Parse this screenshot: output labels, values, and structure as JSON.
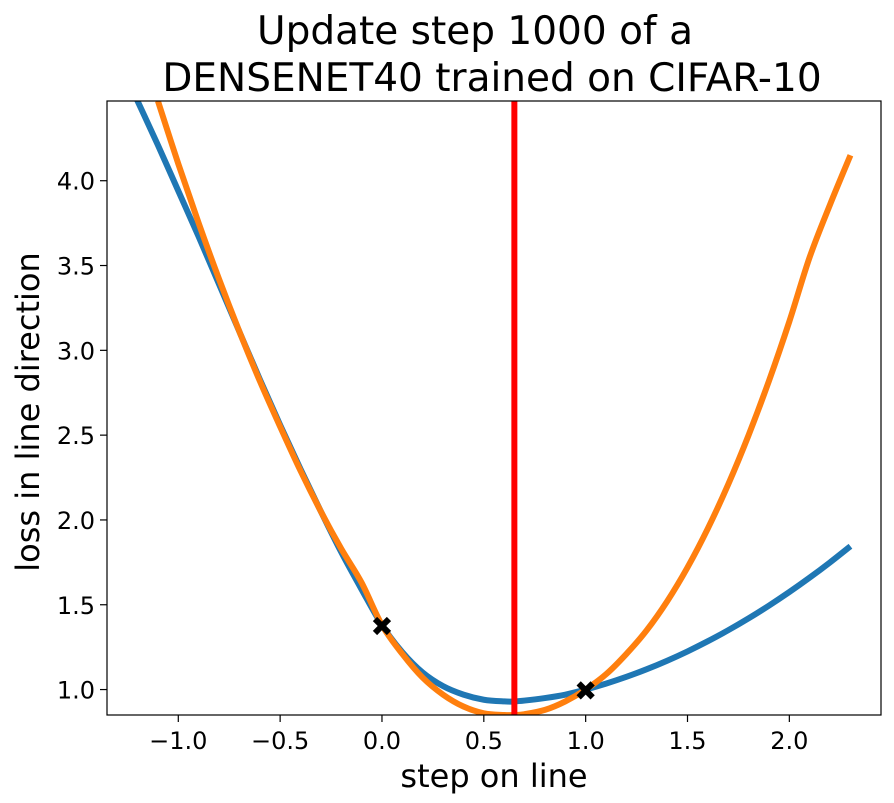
{
  "chart_data": {
    "type": "line",
    "title_lines": [
      "Update step 1000 of a",
      "DENSENET40 trained on CIFAR-10"
    ],
    "xlabel": "step on line",
    "ylabel": "loss in line direction",
    "xlim": [
      -1.35,
      2.45
    ],
    "ylim": [
      0.85,
      4.47
    ],
    "xticks": [
      -1.0,
      -0.5,
      0.0,
      0.5,
      1.0,
      1.5,
      2.0
    ],
    "xtick_labels": [
      "−1.0",
      "−0.5",
      "0.0",
      "0.5",
      "1.0",
      "1.5",
      "2.0"
    ],
    "yticks": [
      1.0,
      1.5,
      2.0,
      2.5,
      3.0,
      3.5,
      4.0
    ],
    "ytick_labels": [
      "1.0",
      "1.5",
      "2.0",
      "2.5",
      "3.0",
      "3.5",
      "4.0"
    ],
    "grid": false,
    "series": [
      {
        "color": "#1f77b4",
        "x": [
          -1.3,
          -1.2,
          -1.1,
          -1.0,
          -0.9,
          -0.8,
          -0.7,
          -0.6,
          -0.5,
          -0.4,
          -0.3,
          -0.2,
          -0.1,
          0.0,
          0.1,
          0.2,
          0.3,
          0.4,
          0.5,
          0.6,
          0.65,
          0.7,
          0.8,
          0.9,
          1.0,
          1.1,
          1.2,
          1.3,
          1.4,
          1.5,
          1.6,
          1.7,
          1.8,
          1.9,
          2.0,
          2.1,
          2.2,
          2.3
        ],
        "y": [
          4.73,
          4.47,
          4.21,
          3.94,
          3.67,
          3.39,
          3.11,
          2.83,
          2.56,
          2.3,
          2.05,
          1.81,
          1.59,
          1.38,
          1.22,
          1.1,
          1.02,
          0.97,
          0.94,
          0.93,
          0.93,
          0.935,
          0.95,
          0.97,
          1.0,
          1.035,
          1.075,
          1.12,
          1.17,
          1.225,
          1.285,
          1.35,
          1.42,
          1.495,
          1.575,
          1.66,
          1.75,
          1.845
        ]
      },
      {
        "color": "#ff7f0e",
        "x": [
          -1.1,
          -1.0,
          -0.9,
          -0.8,
          -0.7,
          -0.6,
          -0.5,
          -0.4,
          -0.3,
          -0.2,
          -0.1,
          0.0,
          0.1,
          0.2,
          0.3,
          0.4,
          0.5,
          0.6,
          0.65,
          0.7,
          0.8,
          0.9,
          1.0,
          1.1,
          1.2,
          1.3,
          1.4,
          1.5,
          1.6,
          1.7,
          1.8,
          1.9,
          2.0,
          2.1,
          2.2,
          2.3
        ],
        "y": [
          4.47,
          4.1,
          3.75,
          3.42,
          3.11,
          2.82,
          2.55,
          2.29,
          2.05,
          1.83,
          1.63,
          1.38,
          1.21,
          1.07,
          0.97,
          0.9,
          0.86,
          0.85,
          0.85,
          0.855,
          0.88,
          0.93,
          1.0,
          1.09,
          1.21,
          1.35,
          1.52,
          1.72,
          1.95,
          2.21,
          2.5,
          2.82,
          3.17,
          3.55,
          3.86,
          4.15
        ]
      }
    ],
    "vline": {
      "x": 0.65,
      "color": "#ff0000"
    },
    "markers": [
      {
        "x": 0.0,
        "y": 1.375,
        "color": "#000000",
        "symbol": "X"
      },
      {
        "x": 1.0,
        "y": 0.995,
        "color": "#000000",
        "symbol": "X"
      }
    ]
  }
}
